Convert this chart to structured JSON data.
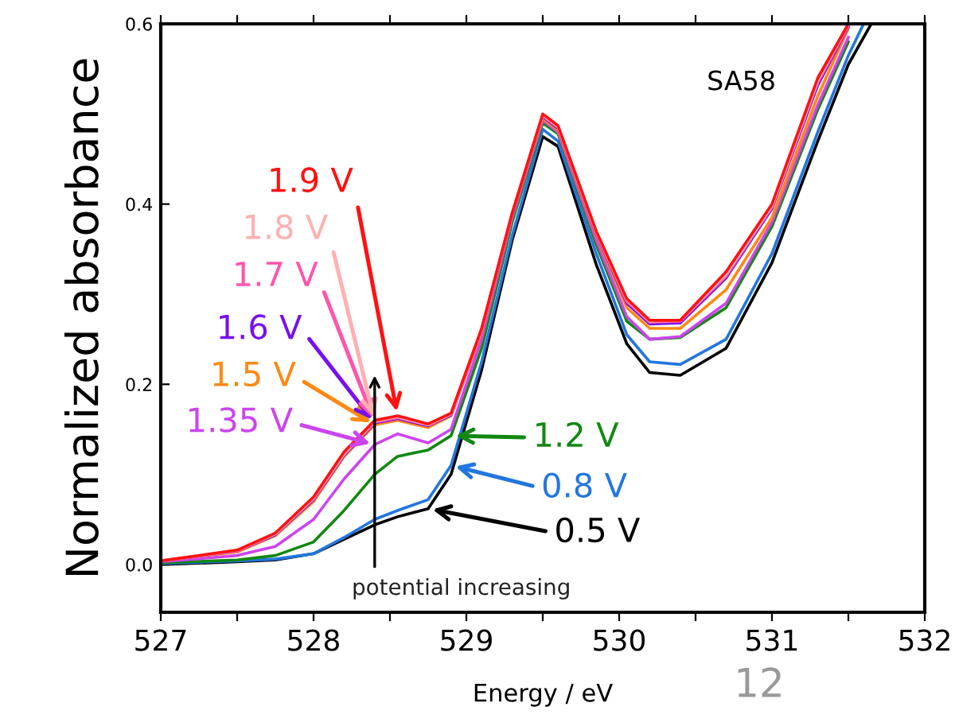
{
  "chart_data": {
    "type": "line",
    "xlabel": "Energy / eV",
    "ylabel": "Normalized absorbance",
    "xlim": [
      527,
      532
    ],
    "ylim": [
      -0.053,
      0.6
    ],
    "xticks": [
      527,
      {
        "value": 527.5,
        "label": null
      },
      528,
      {
        "value": 528.5,
        "label": null
      },
      529,
      {
        "value": 529.5,
        "label": null
      },
      530,
      {
        "value": 530.5,
        "label": null
      },
      531,
      {
        "value": 531.5,
        "label": null
      },
      532
    ],
    "yticks": [
      {
        "value": 0,
        "label": "0.0"
      },
      {
        "value": 0.2,
        "label": "0.2"
      },
      {
        "value": 0.4,
        "label": "0.4"
      },
      {
        "value": 0.6,
        "label": "0.6"
      }
    ],
    "grid": false,
    "legend": false,
    "marker": "none",
    "line_style": "solid",
    "x": [
      527,
      527.5,
      527.75,
      528,
      528.2,
      528.4,
      528.55,
      528.75,
      528.9,
      529.1,
      529.3,
      529.5,
      529.6,
      529.85,
      530.05,
      530.2,
      530.4,
      530.7,
      531,
      531.3,
      531.5
    ],
    "series": [
      {
        "color": "#000000",
        "x": [
          527,
          527.5,
          527.75,
          528,
          528.2,
          528.4,
          528.55,
          528.75,
          528.9,
          529.1,
          529.3,
          529.5,
          529.6,
          529.85,
          530.05,
          530.2,
          530.4,
          530.7,
          531,
          531.3,
          531.5,
          531.65
        ],
        "values": [
          0,
          0.003,
          0.005,
          0.012,
          0.028,
          0.044,
          0.053,
          0.062,
          0.1,
          0.216,
          0.36,
          0.475,
          0.464,
          0.333,
          0.245,
          0.213,
          0.21,
          0.24,
          0.335,
          0.47,
          0.555,
          0.6
        ]
      },
      {
        "color": "#2277dd",
        "x": [
          527,
          527.5,
          527.75,
          528,
          528.2,
          528.4,
          528.55,
          528.75,
          528.9,
          529.1,
          529.3,
          529.5,
          529.6,
          529.85,
          530.05,
          530.2,
          530.4,
          530.7,
          531,
          531.3,
          531.5,
          531.6
        ],
        "values": [
          0.001,
          0.004,
          0.006,
          0.012,
          0.03,
          0.05,
          0.06,
          0.072,
          0.11,
          0.225,
          0.365,
          0.483,
          0.47,
          0.345,
          0.255,
          0.225,
          0.222,
          0.25,
          0.345,
          0.48,
          0.565,
          0.6
        ]
      },
      {
        "color": "#118811",
        "values": [
          0.002,
          0.005,
          0.01,
          0.025,
          0.06,
          0.1,
          0.12,
          0.127,
          0.143,
          0.24,
          0.38,
          0.49,
          0.478,
          0.355,
          0.27,
          0.25,
          0.252,
          0.285,
          0.375,
          0.505,
          0.58
        ]
      },
      {
        "color": "#cc44ee",
        "values": [
          0.003,
          0.01,
          0.02,
          0.05,
          0.095,
          0.133,
          0.145,
          0.135,
          0.15,
          0.25,
          0.385,
          0.493,
          0.48,
          0.36,
          0.275,
          0.25,
          0.253,
          0.29,
          0.38,
          0.51,
          0.585
        ]
      },
      {
        "color": "#ff8811",
        "values": [
          0.004,
          0.014,
          0.032,
          0.07,
          0.12,
          0.155,
          0.16,
          0.152,
          0.165,
          0.258,
          0.388,
          0.495,
          0.482,
          0.365,
          0.285,
          0.262,
          0.262,
          0.305,
          0.385,
          0.52,
          0.595
        ]
      },
      {
        "color": "#7711ee",
        "values": [
          0.004,
          0.015,
          0.033,
          0.072,
          0.121,
          0.157,
          0.162,
          0.154,
          0.166,
          0.26,
          0.389,
          0.497,
          0.484,
          0.367,
          0.29,
          0.267,
          0.268,
          0.318,
          0.395,
          0.532,
          0.597
        ]
      },
      {
        "color": "#ff55aa",
        "values": [
          0.004,
          0.015,
          0.034,
          0.073,
          0.122,
          0.158,
          0.163,
          0.155,
          0.167,
          0.26,
          0.39,
          0.498,
          0.485,
          0.368,
          0.292,
          0.269,
          0.27,
          0.32,
          0.397,
          0.535,
          0.598
        ]
      },
      {
        "color": "#ffb0b0",
        "values": [
          0.004,
          0.016,
          0.034,
          0.074,
          0.123,
          0.159,
          0.164,
          0.155,
          0.167,
          0.261,
          0.39,
          0.499,
          0.486,
          0.369,
          0.294,
          0.27,
          0.271,
          0.322,
          0.398,
          0.537,
          0.6
        ]
      },
      {
        "color": "#ff1111",
        "values": [
          0.004,
          0.016,
          0.035,
          0.075,
          0.125,
          0.16,
          0.165,
          0.156,
          0.168,
          0.262,
          0.39,
          0.5,
          0.487,
          0.37,
          0.295,
          0.271,
          0.271,
          0.325,
          0.4,
          0.54,
          0.6
        ]
      }
    ],
    "annotations": [
      {
        "text": "0.5 V",
        "x": 528.75,
        "y": 0.062
      },
      {
        "text": "0.8 V",
        "x": 528.9,
        "y": 0.11
      },
      {
        "text": "1.2 V",
        "x": 528.9,
        "y": 0.143
      },
      {
        "text": "1.35 V",
        "x": 528.4,
        "y": 0.133
      },
      {
        "text": "1.5 V",
        "x": 528.4,
        "y": 0.155
      },
      {
        "text": "1.6 V",
        "x": 528.4,
        "y": 0.157
      },
      {
        "text": "1.7 V",
        "x": 528.4,
        "y": 0.158
      },
      {
        "text": "1.8 V",
        "x": 528.4,
        "y": 0.159
      },
      {
        "text": "1.9 V",
        "x": 528.55,
        "y": 0.165
      },
      "potential increasing",
      "SA58",
      "12"
    ]
  }
}
